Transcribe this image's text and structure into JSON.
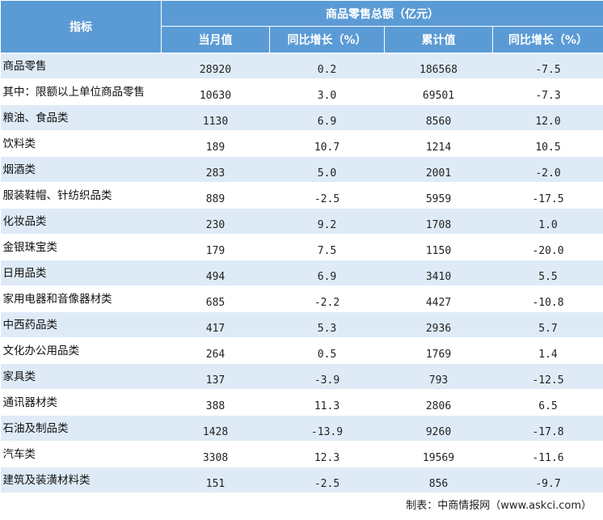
{
  "header": {
    "indicator": "指标",
    "group": "商品零售总额（亿元）",
    "columns": [
      "当月值",
      "同比增长（%）",
      "累计值",
      "同比增长（%）"
    ]
  },
  "rows": [
    {
      "name": "商品零售",
      "month": "28920",
      "month_yoy": "0.2",
      "cum": "186568",
      "cum_yoy": "-7.5"
    },
    {
      "name": "其中：限额以上单位商品零售",
      "month": "10630",
      "month_yoy": "3.0",
      "cum": "69501",
      "cum_yoy": "-7.3"
    },
    {
      "name": "粮油、食品类",
      "month": "1130",
      "month_yoy": "6.9",
      "cum": "8560",
      "cum_yoy": "12.0"
    },
    {
      "name": "饮料类",
      "month": "189",
      "month_yoy": "10.7",
      "cum": "1214",
      "cum_yoy": "10.5"
    },
    {
      "name": "烟酒类",
      "month": "283",
      "month_yoy": "5.0",
      "cum": "2001",
      "cum_yoy": "-2.0"
    },
    {
      "name": "服装鞋帽、针纺织品类",
      "month": "889",
      "month_yoy": "-2.5",
      "cum": "5959",
      "cum_yoy": "-17.5"
    },
    {
      "name": "化妆品类",
      "month": "230",
      "month_yoy": "9.2",
      "cum": "1708",
      "cum_yoy": "1.0"
    },
    {
      "name": "金银珠宝类",
      "month": "179",
      "month_yoy": "7.5",
      "cum": "1150",
      "cum_yoy": "-20.0"
    },
    {
      "name": "日用品类",
      "month": "494",
      "month_yoy": "6.9",
      "cum": "3410",
      "cum_yoy": "5.5"
    },
    {
      "name": "家用电器和音像器材类",
      "month": "685",
      "month_yoy": "-2.2",
      "cum": "4427",
      "cum_yoy": "-10.8"
    },
    {
      "name": "中西药品类",
      "month": "417",
      "month_yoy": "5.3",
      "cum": "2936",
      "cum_yoy": "5.7"
    },
    {
      "name": "文化办公用品类",
      "month": "264",
      "month_yoy": "0.5",
      "cum": "1769",
      "cum_yoy": "1.4"
    },
    {
      "name": "家具类",
      "month": "137",
      "month_yoy": "-3.9",
      "cum": "793",
      "cum_yoy": "-12.5"
    },
    {
      "name": "通讯器材类",
      "month": "388",
      "month_yoy": "11.3",
      "cum": "2806",
      "cum_yoy": "6.5"
    },
    {
      "name": "石油及制品类",
      "month": "1428",
      "month_yoy": "-13.9",
      "cum": "9260",
      "cum_yoy": "-17.8"
    },
    {
      "name": "汽车类",
      "month": "3308",
      "month_yoy": "12.3",
      "cum": "19569",
      "cum_yoy": "-11.6"
    },
    {
      "name": "建筑及装潢材料类",
      "month": "151",
      "month_yoy": "-2.5",
      "cum": "856",
      "cum_yoy": "-9.7"
    }
  ],
  "footer": "制表：中商情报网（www.askci.com）",
  "colors": {
    "header_bg": "#5b9bd5",
    "band_bg": "#deebf7"
  }
}
